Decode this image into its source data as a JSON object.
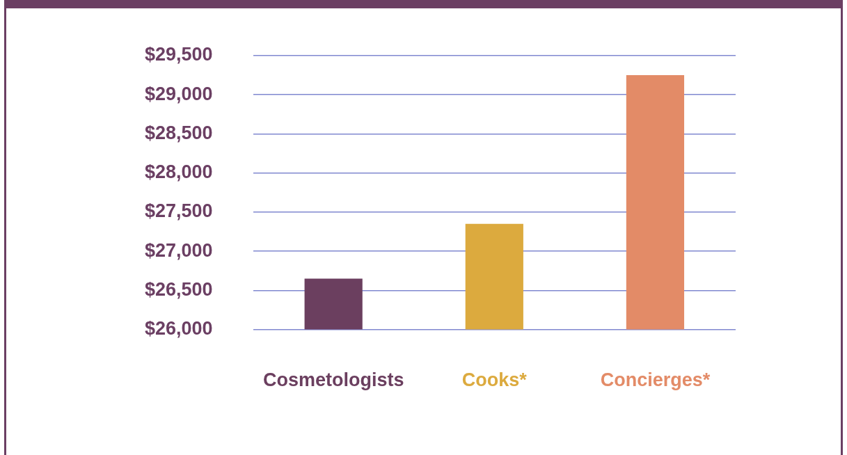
{
  "chart_data": {
    "type": "bar",
    "categories": [
      "Cosmetologists",
      "Cooks*",
      "Concierges*"
    ],
    "values": [
      26650,
      27350,
      29250
    ],
    "colors": [
      "#6b3f5f",
      "#dcaa3e",
      "#e38b67"
    ],
    "ylim": [
      26000,
      29500
    ],
    "yticks": [
      {
        "value": 26000,
        "label": "$26,000"
      },
      {
        "value": 26500,
        "label": "$26,500"
      },
      {
        "value": 27000,
        "label": "$27,000"
      },
      {
        "value": 27500,
        "label": "$27,500"
      },
      {
        "value": 28000,
        "label": "$28,000"
      },
      {
        "value": 28500,
        "label": "$28,500"
      },
      {
        "value": 29000,
        "label": "$29,000"
      },
      {
        "value": 29500,
        "label": "$29,500"
      }
    ],
    "grid": "y",
    "legend": false
  }
}
